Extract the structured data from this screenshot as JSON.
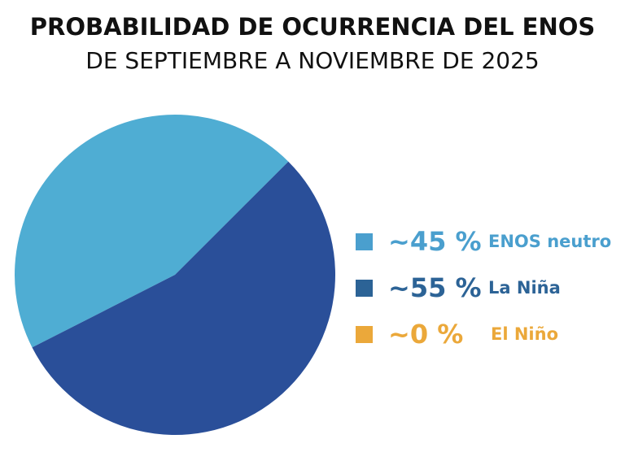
{
  "chart_data": {
    "type": "pie",
    "title": "PROBABILIDAD DE OCURRENCIA DEL ENOS",
    "subtitle": "DE SEPTIEMBRE A NOVIEMBRE DE 2025",
    "legend_position": "right",
    "slices": [
      {
        "label": "ENOS neutro",
        "value": 45,
        "value_label": "~45 %",
        "color": "#4FADD3",
        "legend_color": "#4A9FCE"
      },
      {
        "label": "La Niña",
        "value": 55,
        "value_label": "~55 %",
        "color": "#2A4F99",
        "legend_color": "#2C6396"
      },
      {
        "label": "El Niño",
        "value": 0,
        "value_label": "~0 %",
        "color": "#EBA83A",
        "legend_color": "#EBA83A"
      }
    ]
  }
}
